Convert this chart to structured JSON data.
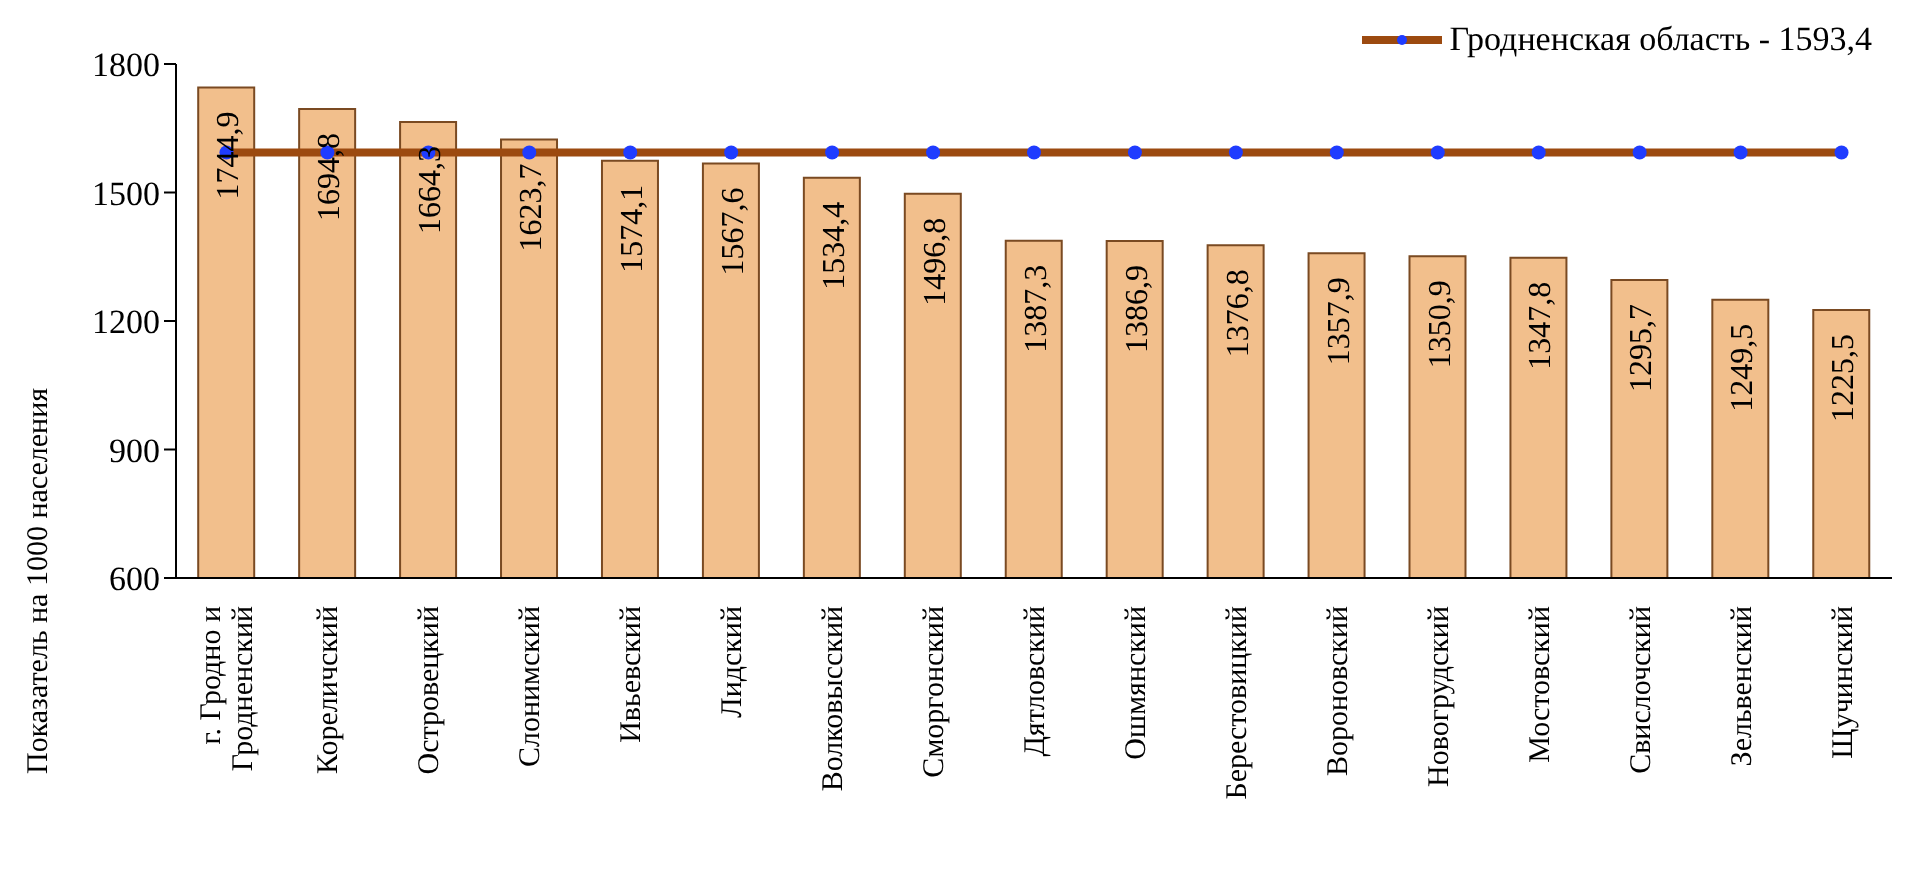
{
  "chart_data": {
    "type": "bar",
    "ylabel": "Показатель на 1000 населения",
    "categories": [
      "г. Гродно и Гродненский",
      "Кореличский",
      "Островецкий",
      "Слонимский",
      "Ивьевский",
      "Лидский",
      "Волковысский",
      "Сморгонский",
      "Дятловский",
      "Ошмянский",
      "Берестовицкий",
      "Вороновский",
      "Новогрудский",
      "Мостовский",
      "Свислочский",
      "Зельвенский",
      "Щучинский"
    ],
    "series": [
      {
        "color": "#f2bf8c",
        "values": [
          1744.9,
          1694.8,
          1664.3,
          1623.7,
          1574.1,
          1567.6,
          1534.4,
          1496.8,
          1387.3,
          1386.9,
          1376.8,
          1357.9,
          1350.9,
          1347.8,
          1295.7,
          1249.5,
          1225.5
        ],
        "value_labels": [
          "1744,9",
          "1694,8",
          "1664,3",
          "1623,7",
          "1574,1",
          "1567,6",
          "1534,4",
          "1496,8",
          "1387,3",
          "1386,9",
          "1376,8",
          "1357,9",
          "1350,9",
          "1347,8",
          "1295,7",
          "1249,5",
          "1225,5"
        ]
      },
      {
        "type": "line",
        "name": "Гродненская область - 1593,4",
        "color": "#9c4a10",
        "marker": "circle",
        "values": [
          1593.4,
          1593.4,
          1593.4,
          1593.4,
          1593.4,
          1593.4,
          1593.4,
          1593.4,
          1593.4,
          1593.4,
          1593.4,
          1593.4,
          1593.4,
          1593.4,
          1593.4,
          1593.4,
          1593.4
        ]
      }
    ],
    "ylim": [
      600,
      1800
    ],
    "yticks": [
      600,
      900,
      1200,
      1500,
      1800
    ],
    "grid": false,
    "legend": "top right"
  }
}
